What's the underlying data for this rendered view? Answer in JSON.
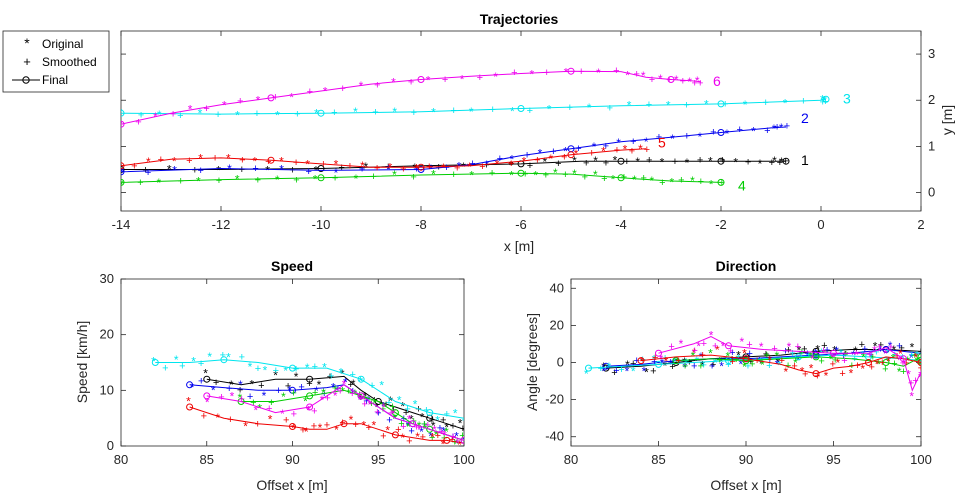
{
  "figure": {
    "legend": {
      "entries": [
        {
          "label": "Original",
          "marker": "*"
        },
        {
          "label": "Smoothed",
          "marker": "+"
        },
        {
          "label": "Final",
          "marker": "-o-"
        }
      ],
      "placement": "top-left"
    }
  },
  "chart_data": [
    {
      "type": "line",
      "title": "Trajectories",
      "xlabel": "x [m]",
      "ylabel": "y [m]",
      "xlim": [
        -14,
        2
      ],
      "ylim": [
        -0.4,
        3.5
      ],
      "xticks": [
        -14,
        -12,
        -10,
        -8,
        -6,
        -4,
        -2,
        0,
        2
      ],
      "yticks": [
        0,
        1,
        2,
        3
      ],
      "yaxis_side": "right",
      "grid": false,
      "series": [
        {
          "name": "1",
          "color": "#000000",
          "x": [
            -14,
            -12,
            -10,
            -8,
            -6,
            -4.8,
            -4,
            -3,
            -2,
            -1,
            -0.7
          ],
          "y": [
            0.5,
            0.5,
            0.52,
            0.58,
            0.62,
            0.68,
            0.68,
            0.68,
            0.68,
            0.68,
            0.68
          ]
        },
        {
          "name": "2",
          "color": "#0000ee",
          "x": [
            -14,
            -12,
            -10,
            -8,
            -7,
            -6,
            -5,
            -4,
            -3,
            -2,
            -1,
            -0.7
          ],
          "y": [
            0.45,
            0.52,
            0.48,
            0.5,
            0.6,
            0.8,
            0.95,
            1.1,
            1.2,
            1.3,
            1.4,
            1.42
          ]
        },
        {
          "name": "3",
          "color": "#00e5ee",
          "x": [
            -14,
            -12,
            -10,
            -8,
            -6,
            -4,
            -2,
            0,
            0.1
          ],
          "y": [
            1.72,
            1.7,
            1.72,
            1.75,
            1.82,
            1.88,
            1.92,
            2.0,
            2.02
          ]
        },
        {
          "name": "4",
          "color": "#00cc00",
          "x": [
            -14,
            -12,
            -10,
            -8,
            -6,
            -5,
            -4,
            -3,
            -2
          ],
          "y": [
            0.22,
            0.28,
            0.32,
            0.38,
            0.42,
            0.4,
            0.32,
            0.25,
            0.22
          ]
        },
        {
          "name": "5",
          "color": "#ee0000",
          "x": [
            -14,
            -13,
            -12,
            -11,
            -10,
            -9,
            -8,
            -7,
            -6,
            -5,
            -4,
            -3.5
          ],
          "y": [
            0.58,
            0.72,
            0.75,
            0.7,
            0.62,
            0.55,
            0.55,
            0.58,
            0.68,
            0.82,
            0.92,
            0.95
          ]
        },
        {
          "name": "6",
          "color": "#ee00ee",
          "x": [
            -14,
            -13,
            -12,
            -11,
            -10,
            -9,
            -8,
            -7,
            -6,
            -5,
            -4,
            -3.5,
            -3,
            -2.6,
            -2.4
          ],
          "y": [
            1.48,
            1.72,
            1.9,
            2.05,
            2.2,
            2.35,
            2.45,
            2.52,
            2.58,
            2.63,
            2.62,
            2.5,
            2.45,
            2.42,
            2.4
          ]
        }
      ]
    },
    {
      "type": "scatter",
      "title": "Speed",
      "xlabel": "Offset x [m]",
      "ylabel": "Speed [km/h]",
      "xlim": [
        80,
        100
      ],
      "ylim": [
        0,
        30
      ],
      "xticks": [
        80,
        85,
        90,
        95,
        100
      ],
      "yticks": [
        0,
        10,
        20,
        30
      ],
      "grid": false,
      "series": [
        {
          "name": "1",
          "color": "#000000",
          "x": [
            85,
            87,
            89,
            91,
            93,
            94,
            95,
            96,
            97,
            98,
            99,
            100
          ],
          "y": [
            12,
            11,
            12,
            12,
            12.5,
            10,
            8,
            7,
            6,
            5,
            4,
            3
          ]
        },
        {
          "name": "2",
          "color": "#0000ee",
          "x": [
            84,
            86,
            88,
            90,
            92,
            93,
            94,
            95,
            96,
            97,
            98,
            99,
            100
          ],
          "y": [
            11,
            10.5,
            10,
            10,
            10.5,
            11,
            9,
            7,
            5,
            4,
            3,
            2,
            1
          ]
        },
        {
          "name": "3",
          "color": "#00e5ee",
          "x": [
            82,
            84,
            86,
            88,
            90,
            92,
            94,
            96,
            98,
            100
          ],
          "y": [
            15,
            15,
            15.5,
            15,
            14,
            14,
            12,
            8,
            6,
            5
          ]
        },
        {
          "name": "4",
          "color": "#00cc00",
          "x": [
            87,
            89,
            91,
            93,
            94,
            95,
            96,
            97,
            98,
            99,
            100
          ],
          "y": [
            8,
            8,
            9,
            10,
            9,
            8,
            6,
            4,
            3,
            2,
            1
          ]
        },
        {
          "name": "5",
          "color": "#ee0000",
          "x": [
            84,
            86,
            88,
            90,
            91,
            92,
            93,
            94,
            95,
            96,
            97,
            98,
            99,
            100
          ],
          "y": [
            7,
            5,
            4,
            3.5,
            3,
            3,
            4,
            4,
            3,
            2,
            1.5,
            1,
            1,
            0.5
          ]
        },
        {
          "name": "6",
          "color": "#ee00ee",
          "x": [
            85,
            87,
            89,
            91,
            92,
            93,
            94,
            95,
            96,
            97,
            98,
            99,
            100
          ],
          "y": [
            9,
            8,
            6,
            7,
            9,
            11,
            9,
            7,
            5,
            4,
            3,
            2,
            1
          ]
        }
      ]
    },
    {
      "type": "scatter",
      "title": "Direction",
      "xlabel": "Offset x [m]",
      "ylabel": "Angle [degrees]",
      "xlim": [
        80,
        100
      ],
      "ylim": [
        -45,
        45
      ],
      "xticks": [
        80,
        85,
        90,
        95,
        100
      ],
      "yticks": [
        -40,
        -20,
        0,
        20,
        40
      ],
      "grid": false,
      "series": [
        {
          "name": "1",
          "color": "#000000",
          "x": [
            82,
            84,
            86,
            88,
            90,
            92,
            94,
            96,
            98,
            100
          ],
          "y": [
            -3,
            -2,
            0,
            2,
            3,
            4,
            6,
            7,
            7,
            6
          ]
        },
        {
          "name": "2",
          "color": "#0000ee",
          "x": [
            82,
            84,
            86,
            88,
            90,
            92,
            94,
            96,
            98,
            100
          ],
          "y": [
            -2,
            -1,
            1,
            2,
            2,
            3,
            4,
            5,
            7,
            5
          ]
        },
        {
          "name": "3",
          "color": "#00e5ee",
          "x": [
            81,
            83,
            85,
            87,
            89,
            91,
            93,
            95,
            97,
            99,
            100
          ],
          "y": [
            -3,
            -2,
            -1,
            0,
            1,
            2,
            3,
            4,
            3,
            2,
            1
          ]
        },
        {
          "name": "4",
          "color": "#00cc00",
          "x": [
            86,
            88,
            90,
            92,
            94,
            96,
            98,
            99,
            100
          ],
          "y": [
            1,
            2,
            1,
            2,
            3,
            2,
            0,
            -2,
            3
          ]
        },
        {
          "name": "5",
          "color": "#ee0000",
          "x": [
            84,
            86,
            88,
            90,
            92,
            93,
            94,
            95,
            96,
            97,
            98,
            99,
            100
          ],
          "y": [
            1,
            3,
            4,
            2,
            -1,
            -4,
            -6,
            -3,
            -2,
            0,
            3,
            2,
            0
          ]
        },
        {
          "name": "6",
          "color": "#ee00ee",
          "x": [
            85,
            87,
            88,
            89,
            91,
            93,
            95,
            97,
            98,
            99,
            99.5,
            100
          ],
          "y": [
            5,
            10,
            14,
            9,
            7,
            6,
            5,
            5,
            8,
            2,
            -15,
            -5
          ]
        }
      ]
    }
  ]
}
